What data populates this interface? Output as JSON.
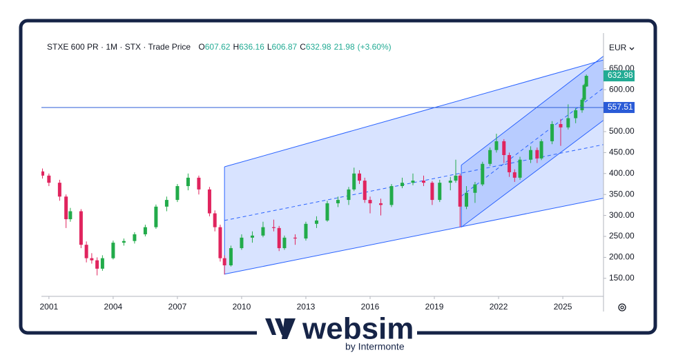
{
  "chart_data": {
    "type": "candlestick",
    "symbol_info": "STXE 600 PR · 1M · STX · Trade Price",
    "ohlc": [
      {
        "label": "O",
        "value": 607.62
      },
      {
        "label": "H",
        "value": 636.16
      },
      {
        "label": "L",
        "value": 606.87
      },
      {
        "label": "C",
        "value": 632.98
      }
    ],
    "change": 21.98,
    "change_label": "(+3.60%)",
    "currency": "EUR",
    "up_color": "#22ab4a",
    "down_color": "#e0245e",
    "x": [
      2000.7,
      2001.0,
      2001.5,
      2001.8,
      2002.0,
      2002.5,
      2002.75,
      2003.0,
      2003.25,
      2003.5,
      2004.0,
      2004.5,
      2005.0,
      2005.5,
      2006.0,
      2006.5,
      2007.0,
      2007.5,
      2008.0,
      2008.5,
      2008.75,
      2009.0,
      2009.2,
      2009.5,
      2010.0,
      2010.5,
      2011.0,
      2011.5,
      2011.75,
      2012.0,
      2012.5,
      2013.0,
      2013.5,
      2014.0,
      2014.5,
      2015.0,
      2015.25,
      2015.5,
      2015.75,
      2016.0,
      2016.5,
      2017.0,
      2017.5,
      2018.0,
      2018.5,
      2018.9,
      2019.25,
      2019.75,
      2020.0,
      2020.2,
      2020.5,
      2020.9,
      2021.25,
      2021.6,
      2021.9,
      2022.25,
      2022.5,
      2022.75,
      2023.0,
      2023.5,
      2023.8,
      2024.0,
      2024.5,
      2024.9,
      2025.25,
      2025.6,
      2025.9,
      2026.0,
      2026.1
    ],
    "open": [
      405,
      395,
      378,
      345,
      291,
      310,
      230,
      198,
      193,
      173,
      198,
      235,
      239,
      255,
      272,
      321,
      337,
      370,
      390,
      362,
      305,
      272,
      198,
      181,
      222,
      247,
      252,
      272,
      270,
      222,
      247,
      245,
      280,
      288,
      329,
      337,
      362,
      400,
      383,
      337,
      329,
      325,
      370,
      378,
      383,
      378,
      337,
      378,
      383,
      395,
      321,
      354,
      374,
      423,
      456,
      477,
      444,
      403,
      390,
      433,
      456,
      436,
      477,
      518,
      510,
      532,
      551,
      576,
      607.62
    ],
    "high": [
      412,
      400,
      385,
      350,
      318,
      315,
      238,
      210,
      200,
      205,
      240,
      245,
      260,
      278,
      326,
      345,
      375,
      400,
      395,
      368,
      312,
      278,
      205,
      228,
      255,
      262,
      285,
      290,
      275,
      252,
      255,
      285,
      298,
      335,
      345,
      368,
      414,
      408,
      390,
      345,
      340,
      375,
      390,
      400,
      395,
      382,
      385,
      392,
      433,
      400,
      370,
      380,
      428,
      462,
      495,
      482,
      450,
      410,
      440,
      465,
      462,
      482,
      525,
      530,
      565,
      556,
      580,
      614,
      636.16
    ],
    "low": [
      388,
      370,
      335,
      270,
      285,
      222,
      188,
      185,
      157,
      168,
      195,
      228,
      233,
      250,
      268,
      310,
      332,
      360,
      350,
      298,
      262,
      190,
      159,
      178,
      218,
      235,
      248,
      262,
      215,
      218,
      230,
      240,
      270,
      285,
      320,
      325,
      358,
      375,
      330,
      305,
      300,
      320,
      365,
      372,
      370,
      325,
      332,
      360,
      378,
      272,
      315,
      330,
      370,
      418,
      450,
      425,
      392,
      380,
      385,
      425,
      425,
      432,
      470,
      466,
      505,
      520,
      545,
      572,
      606.87
    ],
    "close": [
      395,
      378,
      345,
      291,
      310,
      230,
      198,
      193,
      173,
      198,
      235,
      239,
      255,
      272,
      321,
      337,
      370,
      390,
      362,
      305,
      272,
      198,
      181,
      222,
      247,
      252,
      272,
      270,
      222,
      247,
      245,
      280,
      288,
      329,
      337,
      362,
      400,
      383,
      337,
      329,
      325,
      370,
      378,
      383,
      378,
      337,
      378,
      383,
      395,
      321,
      354,
      374,
      423,
      456,
      477,
      444,
      403,
      390,
      433,
      456,
      436,
      477,
      518,
      510,
      532,
      551,
      576,
      611,
      632.98
    ],
    "xlim": [
      2000.65,
      2026.9
    ],
    "xticks": [
      2001,
      2004,
      2007,
      2010,
      2013,
      2016,
      2019,
      2022,
      2025
    ],
    "ylim": [
      107,
      735
    ],
    "yticks": [
      {
        "value": 150,
        "label": "150.00"
      },
      {
        "value": 200,
        "label": "200.00"
      },
      {
        "value": 250,
        "label": "250.00"
      },
      {
        "value": 300,
        "label": "300.00"
      },
      {
        "value": 350,
        "label": "350.00"
      },
      {
        "value": 400,
        "label": "400.00"
      },
      {
        "value": 450,
        "label": "450.00"
      },
      {
        "value": 500,
        "label": "500.00"
      },
      {
        "value": 550,
        "label": "550.00"
      },
      {
        "value": 600,
        "label": "600.00"
      },
      {
        "value": 650,
        "label": "650.00"
      }
    ],
    "channels": [
      {
        "x": [
          2009.2,
          2026.9
        ],
        "upper": [
          416,
          671
        ],
        "middle": [
          288,
          469
        ],
        "lower": [
          160,
          341
        ]
      },
      {
        "x": [
          2020.26,
          2026.9
        ],
        "upper": [
          420,
          680
        ],
        "middle": [
          346,
          604
        ],
        "lower": [
          272,
          527
        ]
      }
    ],
    "channel_color": "#2962ff",
    "price_line": {
      "value": 557.51,
      "color": "#2a5bd7"
    },
    "last_price_color": "#22ab94"
  },
  "logo": {
    "name": "websim",
    "tagline": "by Intermonte"
  }
}
